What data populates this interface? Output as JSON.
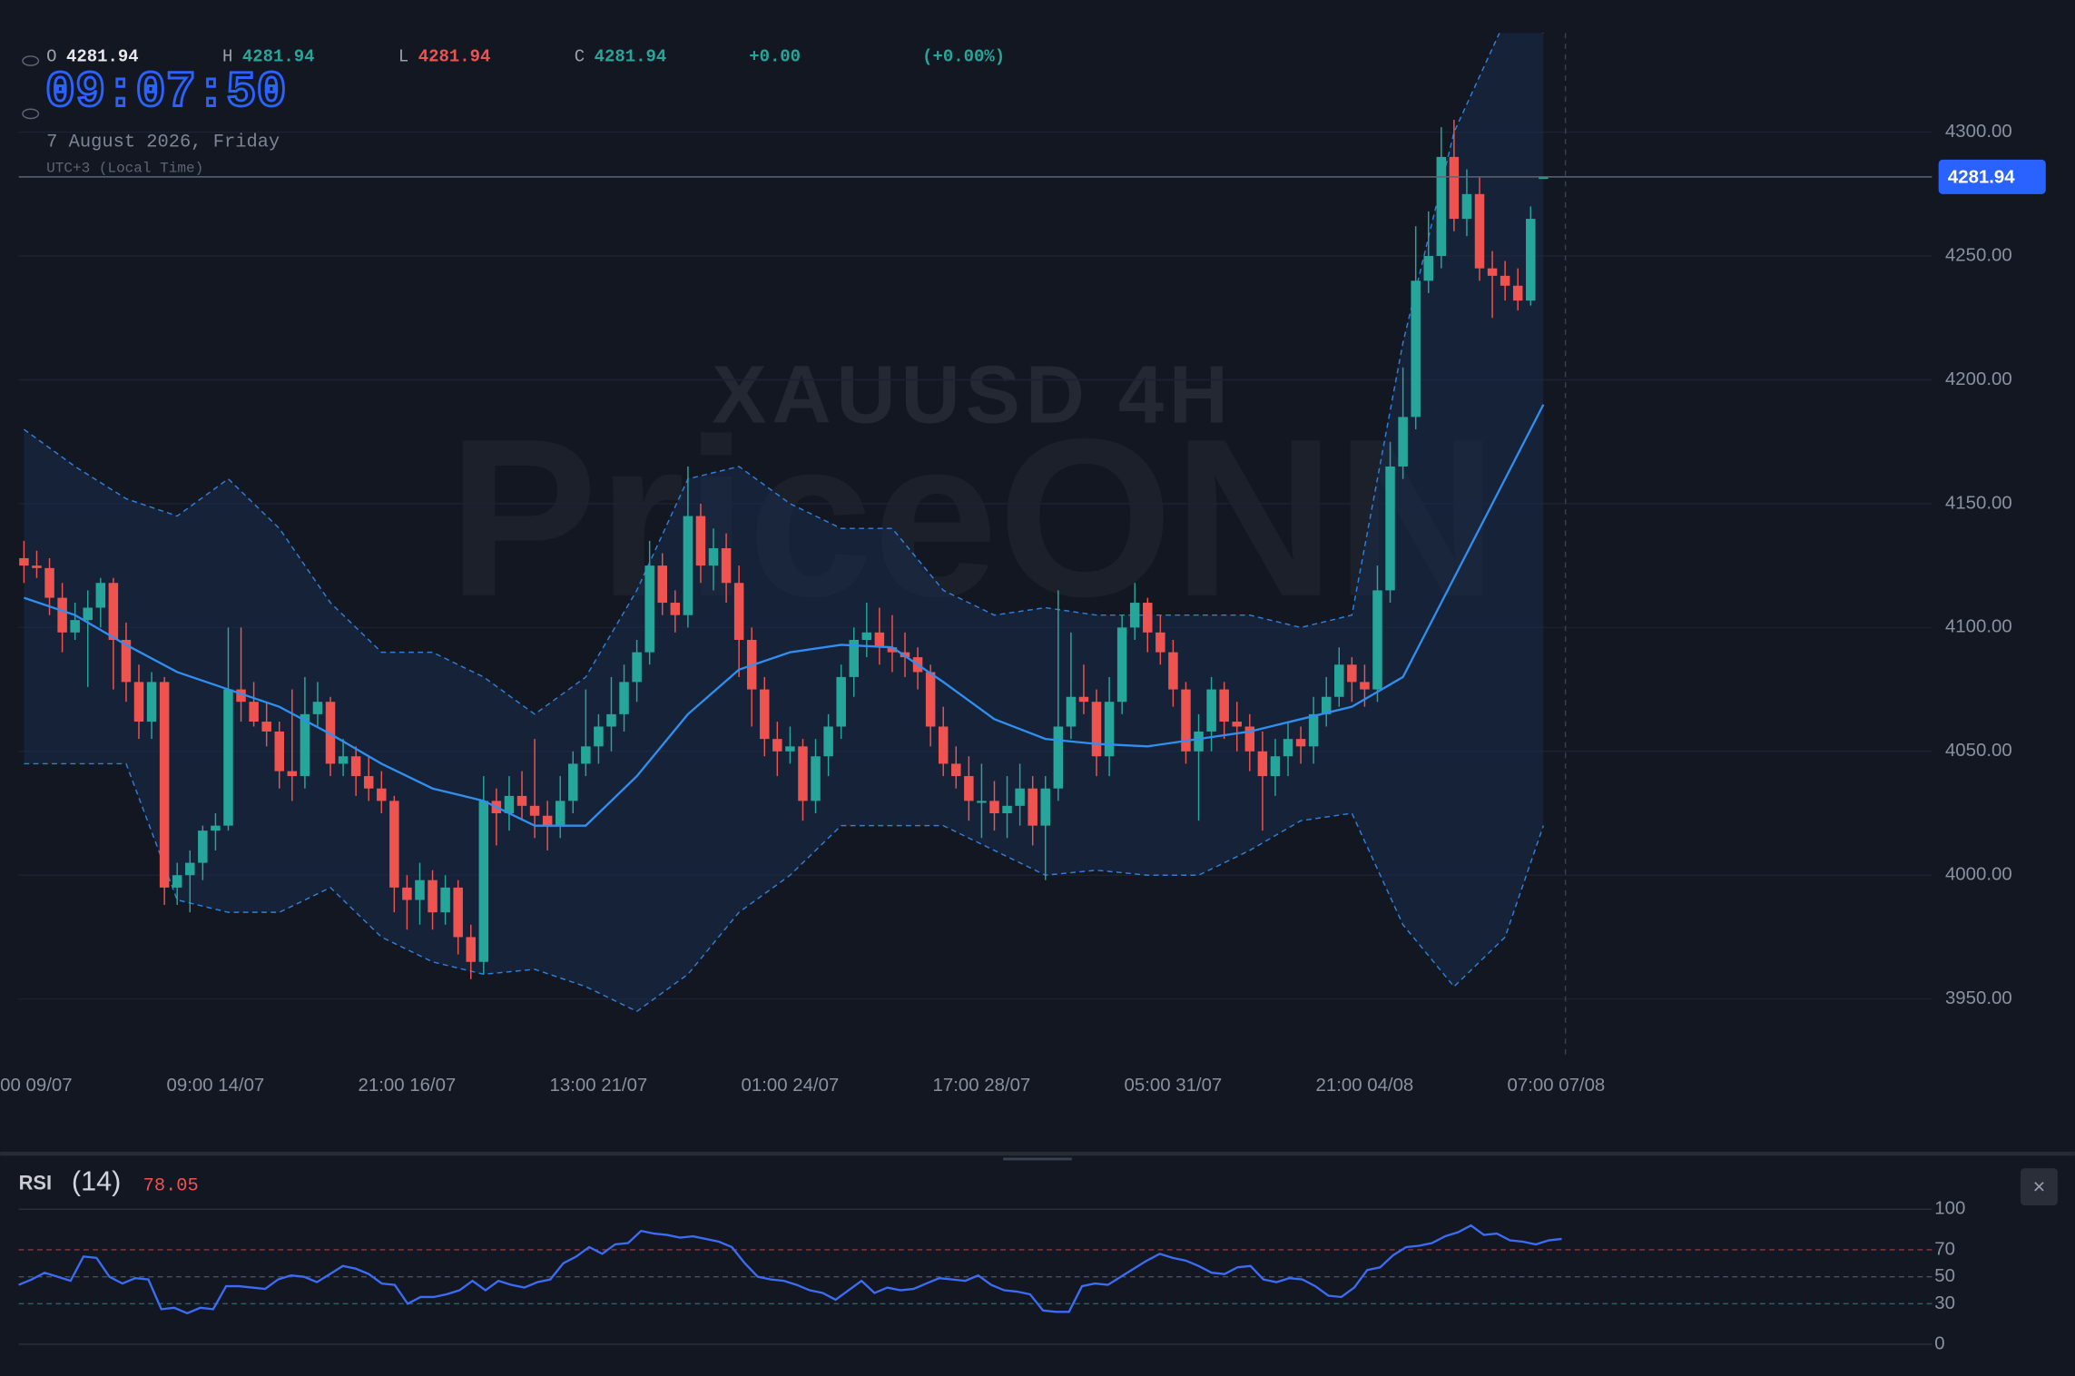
{
  "header": {
    "labels": [
      "O",
      "H",
      "L",
      "C"
    ],
    "change": "+0.00",
    "change_pct": "(+0.00%)",
    "clock": "09:07:50",
    "date": "7 August 2026, Friday",
    "timezone": "UTC+3 (Local Time)"
  },
  "watermark": {
    "symbol": "XAUUSD 4H",
    "brand": "PriceONN"
  },
  "close_button": "×",
  "chart_data": [
    {
      "type": "candlestick",
      "colors": {
        "up": "#26a69a",
        "down": "#ef5350"
      },
      "ohlc": [
        [
          4128,
          4135,
          4118,
          4125
        ],
        [
          4125,
          4131,
          4120,
          4124
        ],
        [
          4124,
          4128,
          4105,
          4112
        ],
        [
          4112,
          4118,
          4090,
          4098
        ],
        [
          4098,
          4110,
          4095,
          4103
        ],
        [
          4103,
          4115,
          4076,
          4108
        ],
        [
          4108,
          4120,
          4100,
          4118
        ],
        [
          4118,
          4120,
          4075,
          4095
        ],
        [
          4095,
          4102,
          4070,
          4078
        ],
        [
          4078,
          4085,
          4055,
          4062
        ],
        [
          4062,
          4082,
          4055,
          4078
        ],
        [
          4078,
          4080,
          3988,
          3995
        ],
        [
          3995,
          4005,
          3988,
          4000
        ],
        [
          4000,
          4010,
          3985,
          4005
        ],
        [
          4005,
          4020,
          3998,
          4018
        ],
        [
          4018,
          4025,
          4010,
          4020
        ],
        [
          4020,
          4100,
          4018,
          4075
        ],
        [
          4075,
          4100,
          4062,
          4070
        ],
        [
          4070,
          4078,
          4060,
          4062
        ],
        [
          4062,
          4070,
          4052,
          4058
        ],
        [
          4058,
          4062,
          4035,
          4042
        ],
        [
          4042,
          4075,
          4030,
          4040
        ],
        [
          4040,
          4080,
          4035,
          4065
        ],
        [
          4065,
          4078,
          4060,
          4070
        ],
        [
          4070,
          4072,
          4040,
          4045
        ],
        [
          4045,
          4055,
          4040,
          4048
        ],
        [
          4048,
          4052,
          4032,
          4040
        ],
        [
          4040,
          4048,
          4030,
          4035
        ],
        [
          4035,
          4042,
          4025,
          4030
        ],
        [
          4030,
          4032,
          3985,
          3995
        ],
        [
          3995,
          4000,
          3978,
          3990
        ],
        [
          3990,
          4005,
          3980,
          3998
        ],
        [
          3998,
          4002,
          3978,
          3985
        ],
        [
          3985,
          4000,
          3980,
          3995
        ],
        [
          3995,
          3998,
          3968,
          3975
        ],
        [
          3975,
          3980,
          3958,
          3965
        ],
        [
          3965,
          4040,
          3960,
          4030
        ],
        [
          4030,
          4035,
          4012,
          4025
        ],
        [
          4025,
          4040,
          4018,
          4032
        ],
        [
          4032,
          4042,
          4022,
          4028
        ],
        [
          4028,
          4055,
          4015,
          4024
        ],
        [
          4024,
          4030,
          4010,
          4020
        ],
        [
          4020,
          4040,
          4015,
          4030
        ],
        [
          4030,
          4050,
          4025,
          4045
        ],
        [
          4045,
          4075,
          4040,
          4052
        ],
        [
          4052,
          4065,
          4045,
          4060
        ],
        [
          4060,
          4080,
          4050,
          4065
        ],
        [
          4065,
          4085,
          4058,
          4078
        ],
        [
          4078,
          4095,
          4070,
          4090
        ],
        [
          4090,
          4135,
          4085,
          4125
        ],
        [
          4125,
          4130,
          4105,
          4110
        ],
        [
          4110,
          4115,
          4098,
          4105
        ],
        [
          4105,
          4165,
          4100,
          4145
        ],
        [
          4145,
          4150,
          4118,
          4125
        ],
        [
          4125,
          4140,
          4115,
          4132
        ],
        [
          4132,
          4138,
          4110,
          4118
        ],
        [
          4118,
          4125,
          4080,
          4095
        ],
        [
          4095,
          4100,
          4060,
          4075
        ],
        [
          4075,
          4080,
          4048,
          4055
        ],
        [
          4055,
          4062,
          4040,
          4050
        ],
        [
          4050,
          4060,
          4045,
          4052
        ],
        [
          4052,
          4055,
          4022,
          4030
        ],
        [
          4030,
          4055,
          4025,
          4048
        ],
        [
          4048,
          4065,
          4040,
          4060
        ],
        [
          4060,
          4085,
          4055,
          4080
        ],
        [
          4080,
          4100,
          4072,
          4095
        ],
        [
          4095,
          4110,
          4088,
          4098
        ],
        [
          4098,
          4108,
          4085,
          4092
        ],
        [
          4092,
          4105,
          4082,
          4090
        ],
        [
          4090,
          4098,
          4080,
          4088
        ],
        [
          4088,
          4092,
          4075,
          4082
        ],
        [
          4082,
          4085,
          4052,
          4060
        ],
        [
          4060,
          4068,
          4040,
          4045
        ],
        [
          4045,
          4052,
          4035,
          4040
        ],
        [
          4040,
          4048,
          4022,
          4030
        ],
        [
          4030,
          4045,
          4015,
          4030
        ],
        [
          4030,
          4038,
          4018,
          4025
        ],
        [
          4025,
          4040,
          4015,
          4028
        ],
        [
          4028,
          4045,
          4020,
          4035
        ],
        [
          4035,
          4040,
          4012,
          4020
        ],
        [
          4020,
          4040,
          3998,
          4035
        ],
        [
          4035,
          4115,
          4030,
          4060
        ],
        [
          4060,
          4098,
          4055,
          4072
        ],
        [
          4072,
          4085,
          4065,
          4070
        ],
        [
          4070,
          4075,
          4040,
          4048
        ],
        [
          4048,
          4080,
          4040,
          4070
        ],
        [
          4070,
          4105,
          4065,
          4100
        ],
        [
          4100,
          4118,
          4095,
          4110
        ],
        [
          4110,
          4112,
          4090,
          4098
        ],
        [
          4098,
          4105,
          4085,
          4090
        ],
        [
          4090,
          4095,
          4068,
          4075
        ],
        [
          4075,
          4078,
          4045,
          4050
        ],
        [
          4050,
          4065,
          4022,
          4058
        ],
        [
          4058,
          4080,
          4050,
          4075
        ],
        [
          4075,
          4078,
          4055,
          4062
        ],
        [
          4062,
          4070,
          4050,
          4060
        ],
        [
          4060,
          4065,
          4042,
          4050
        ],
        [
          4050,
          4058,
          4018,
          4040
        ],
        [
          4040,
          4055,
          4032,
          4048
        ],
        [
          4048,
          4062,
          4040,
          4055
        ],
        [
          4055,
          4060,
          4045,
          4052
        ],
        [
          4052,
          4072,
          4045,
          4065
        ],
        [
          4065,
          4080,
          4060,
          4072
        ],
        [
          4072,
          4092,
          4068,
          4085
        ],
        [
          4085,
          4088,
          4070,
          4078
        ],
        [
          4078,
          4085,
          4068,
          4075
        ],
        [
          4075,
          4125,
          4070,
          4115
        ],
        [
          4115,
          4175,
          4110,
          4165
        ],
        [
          4165,
          4205,
          4160,
          4185
        ],
        [
          4185,
          4262,
          4180,
          4240
        ],
        [
          4240,
          4268,
          4235,
          4250
        ],
        [
          4250,
          4302,
          4245,
          4290
        ],
        [
          4290,
          4305,
          4260,
          4265
        ],
        [
          4265,
          4285,
          4258,
          4275
        ],
        [
          4275,
          4282,
          4240,
          4245
        ],
        [
          4245,
          4252,
          4225,
          4242
        ],
        [
          4242,
          4248,
          4232,
          4238
        ],
        [
          4238,
          4245,
          4228,
          4232
        ],
        [
          4232,
          4270,
          4230,
          4265
        ],
        [
          4281.94,
          4281.94,
          4281.94,
          4281.94
        ]
      ],
      "xticks": [
        {
          "value": 0,
          "label": "00 09/07"
        },
        {
          "value": 15,
          "label": "09:00 14/07"
        },
        {
          "value": 30,
          "label": "21:00 16/07"
        },
        {
          "value": 45,
          "label": "13:00 21/07"
        },
        {
          "value": 60,
          "label": "01:00 24/07"
        },
        {
          "value": 75,
          "label": "17:00 28/07"
        },
        {
          "value": 90,
          "label": "05:00 31/07"
        },
        {
          "value": 105,
          "label": "21:00 04/08"
        },
        {
          "value": 120,
          "label": "07:00 07/08"
        }
      ],
      "ylim": [
        3926,
        4340
      ],
      "yticks": [
        {
          "value": 3950,
          "label": "3950.00"
        },
        {
          "value": 4000,
          "label": "4000.00"
        },
        {
          "value": 4050,
          "label": "4050.00"
        },
        {
          "value": 4100,
          "label": "4100.00"
        },
        {
          "value": 4150,
          "label": "4150.00"
        },
        {
          "value": 4200,
          "label": "4200.00"
        },
        {
          "value": 4250,
          "label": "4250.00"
        },
        {
          "value": 4300,
          "label": "4300.00"
        }
      ],
      "grid": true,
      "overlay": {
        "x": [
          0,
          4,
          8,
          12,
          16,
          20,
          24,
          28,
          32,
          36,
          40,
          44,
          48,
          52,
          56,
          60,
          64,
          68,
          72,
          76,
          80,
          84,
          88,
          92,
          96,
          100,
          104,
          108,
          112,
          116,
          119
        ],
        "ma": {
          "color": "#2f8ff0",
          "values": [
            4112,
            4105,
            4093,
            4082,
            4075,
            4068,
            4057,
            4045,
            4035,
            4030,
            4020,
            4020,
            4040,
            4065,
            4083,
            4090,
            4093,
            4092,
            4078,
            4063,
            4055,
            4053,
            4052,
            4055,
            4058,
            4063,
            4068,
            4080,
            4120,
            4160,
            4190
          ]
        },
        "upper": {
          "color": "#2f7fd8",
          "values": [
            4180,
            4165,
            4152,
            4145,
            4160,
            4140,
            4110,
            4090,
            4090,
            4080,
            4065,
            4080,
            4115,
            4160,
            4165,
            4150,
            4140,
            4140,
            4115,
            4105,
            4108,
            4105,
            4105,
            4105,
            4105,
            4100,
            4105,
            4215,
            4300,
            4345,
            4340
          ]
        },
        "lower": {
          "color": "#2f7fd8",
          "values": [
            4045,
            4045,
            4045,
            3990,
            3985,
            3985,
            3995,
            3975,
            3965,
            3960,
            3962,
            3955,
            3945,
            3960,
            3985,
            4000,
            4020,
            4020,
            4020,
            4010,
            4000,
            4002,
            4000,
            4000,
            4010,
            4022,
            4025,
            3980,
            3955,
            3975,
            4020
          ]
        }
      }
    },
    {
      "type": "line",
      "name": "RSI",
      "period": "(14)",
      "color": "#3b6cf5",
      "value_label": "78.05",
      "values": [
        44,
        48,
        53,
        50,
        47,
        65,
        64,
        50,
        45,
        49,
        48,
        26,
        27,
        23,
        27,
        26,
        43,
        43,
        42,
        41,
        48,
        51,
        50,
        46,
        52,
        58,
        56,
        52,
        45,
        44,
        30,
        35,
        35,
        37,
        40,
        47,
        40,
        47,
        44,
        42,
        46,
        48,
        60,
        65,
        72,
        67,
        74,
        75,
        84,
        82,
        81,
        79,
        80,
        78,
        76,
        72,
        60,
        50,
        48,
        47,
        44,
        40,
        38,
        33,
        40,
        47,
        38,
        42,
        40,
        41,
        45,
        49,
        48,
        47,
        51,
        44,
        40,
        39,
        37,
        25,
        24,
        24,
        43,
        45,
        44,
        50,
        56,
        62,
        67,
        64,
        62,
        58,
        53,
        52,
        57,
        58,
        48,
        46,
        49,
        48,
        43,
        36,
        35,
        42,
        55,
        57,
        66,
        72,
        73,
        75,
        80,
        83,
        88,
        81,
        82,
        77,
        76,
        74,
        77,
        78.05
      ],
      "ylim": [
        0,
        100
      ],
      "yticks": [
        0,
        30,
        50,
        70,
        100
      ]
    }
  ]
}
